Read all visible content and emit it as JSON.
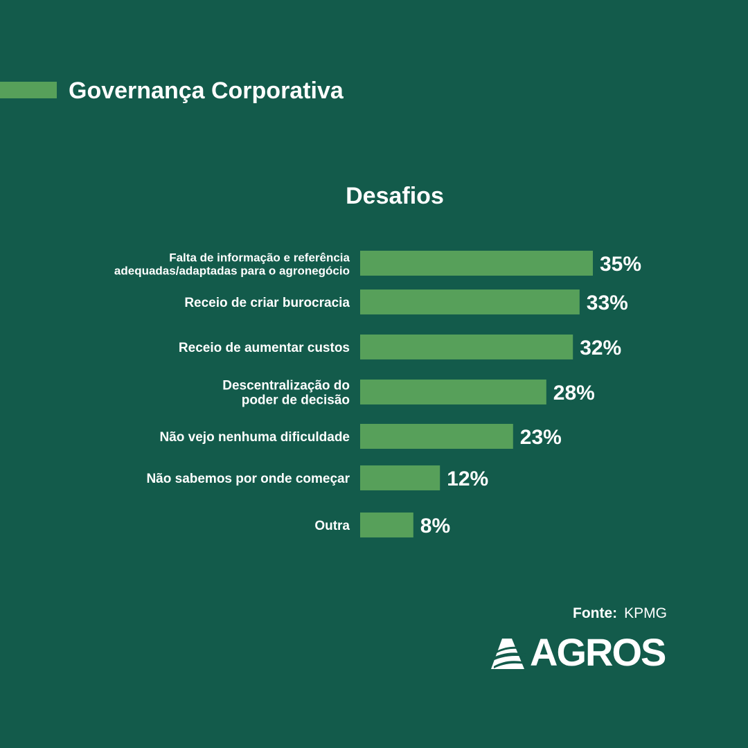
{
  "header": {
    "title": "Governança Corporativa"
  },
  "colors": {
    "background": "#135b4b",
    "bar": "#57a05a",
    "text": "#ffffff"
  },
  "chart_data": {
    "type": "bar",
    "orientation": "horizontal",
    "title": "Desafios",
    "xlabel": "",
    "ylabel": "",
    "value_suffix": "%",
    "xlim": [
      0,
      35
    ],
    "grid": false,
    "categories": [
      [
        "Falta de informação e referência",
        "adequadas/adaptadas para o agronegócio"
      ],
      [
        "Receio de  criar burocracia"
      ],
      [
        "Receio de aumentar custos"
      ],
      [
        "Descentralização  do",
        "poder de decisão"
      ],
      [
        "Não vejo nenhuma  dificuldade"
      ],
      [
        "Não sabemos por onde começar"
      ],
      [
        "Outra"
      ]
    ],
    "values": [
      35,
      33,
      32,
      28,
      23,
      12,
      8
    ],
    "value_labels": [
      "35%",
      "33%",
      "32%",
      "28%",
      "23%",
      "12%",
      "8%"
    ]
  },
  "source": {
    "label": "Fonte:",
    "value": "KPMG"
  },
  "logo": {
    "text": "AGROS",
    "icon": "agros-logo-icon"
  }
}
